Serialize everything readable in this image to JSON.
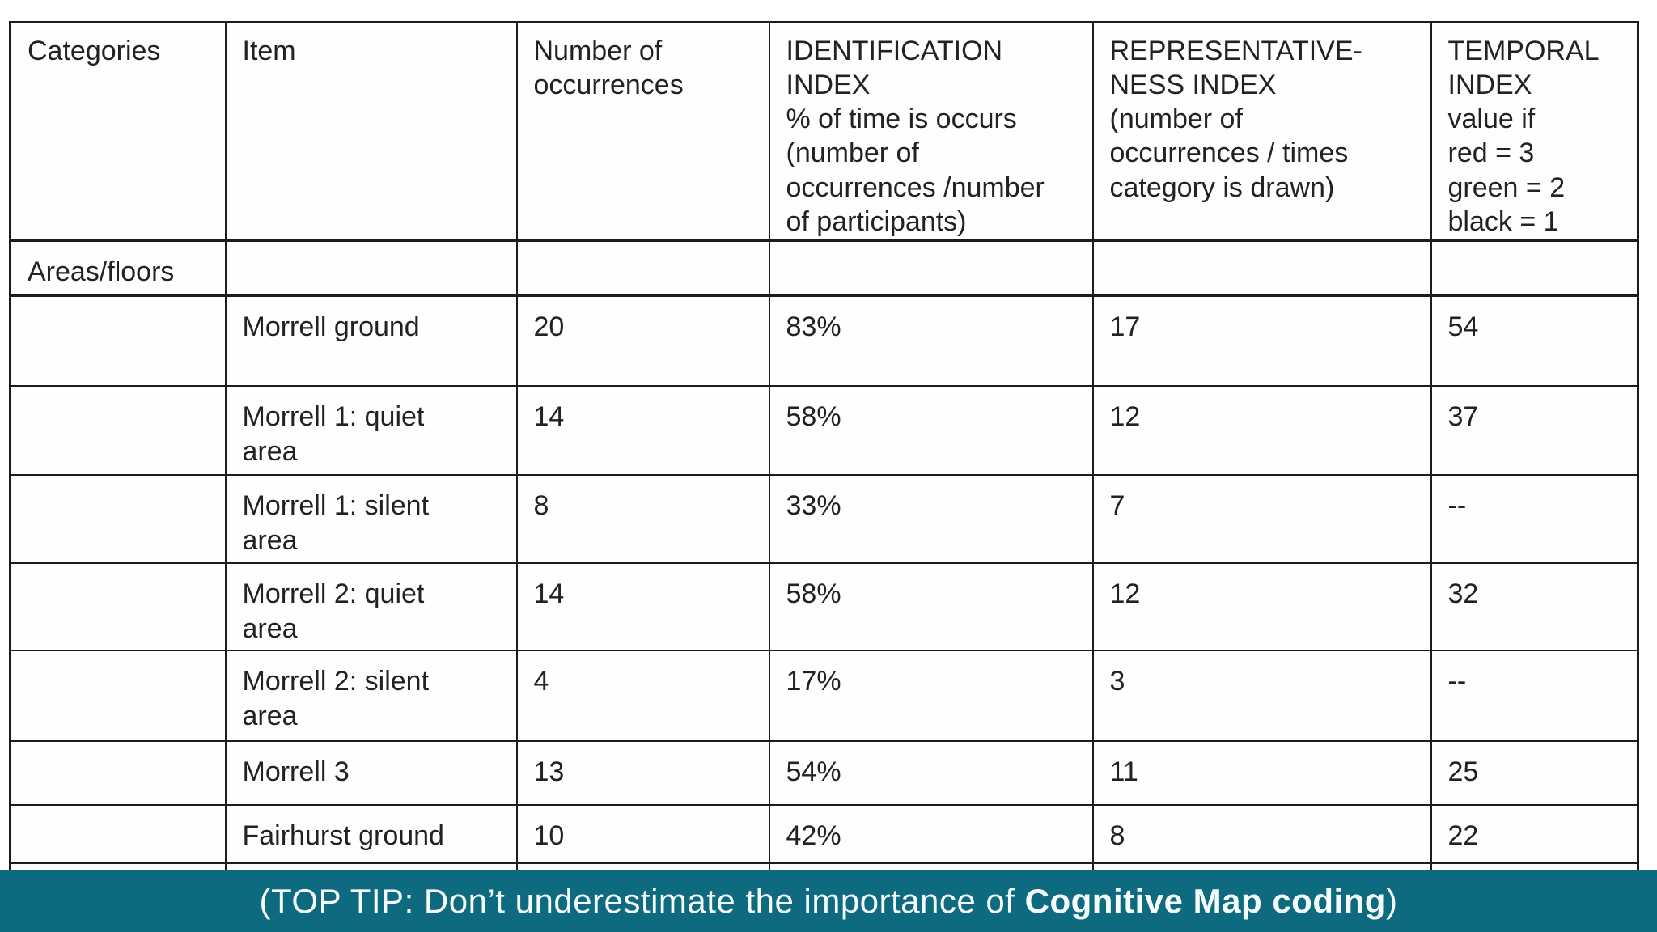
{
  "table": {
    "columns": [
      {
        "label": "Categories"
      },
      {
        "label": "Item"
      },
      {
        "label": "Number of\noccurrences"
      },
      {
        "label": "IDENTIFICATION\nINDEX\n% of time is occurs\n(number of\noccurrences /number\nof participants)"
      },
      {
        "label": "REPRESENTATIVE-\nNESS INDEX\n(number of\noccurrences / times\ncategory is drawn)"
      },
      {
        "label": "TEMPORAL\nINDEX\nvalue if\nred = 3\ngreen = 2\nblack = 1"
      }
    ],
    "rows": [
      {
        "type": "category",
        "category": "Areas/floors",
        "item": "",
        "occurrences": "",
        "identification": "",
        "representativeness": "",
        "temporal": ""
      },
      {
        "type": "data",
        "category": "",
        "item": "Morrell ground",
        "occurrences": "20",
        "identification": "83%",
        "representativeness": "17",
        "temporal": "54"
      },
      {
        "type": "data",
        "category": "",
        "item": "Morrell 1: quiet\narea",
        "occurrences": "14",
        "identification": "58%",
        "representativeness": "12",
        "temporal": "37"
      },
      {
        "type": "data",
        "category": "",
        "item": "Morrell 1: silent\narea",
        "occurrences": "8",
        "identification": "33%",
        "representativeness": "7",
        "temporal": "--"
      },
      {
        "type": "data",
        "category": "",
        "item": "Morrell 2: quiet\narea",
        "occurrences": "14",
        "identification": "58%",
        "representativeness": "12",
        "temporal": "32"
      },
      {
        "type": "data",
        "category": "",
        "item": "Morrell 2: silent\narea",
        "occurrences": "4",
        "identification": "17%",
        "representativeness": "3",
        "temporal": "--"
      },
      {
        "type": "data",
        "category": "",
        "item": "Morrell 3",
        "occurrences": "13",
        "identification": "54%",
        "representativeness": "11",
        "temporal": "25"
      },
      {
        "type": "data",
        "category": "",
        "item": "Fairhurst ground",
        "occurrences": "10",
        "identification": "42%",
        "representativeness": "8",
        "temporal": "22"
      },
      {
        "type": "partial",
        "category": "",
        "item": "",
        "occurrences": "",
        "identification": "",
        "representativeness": "",
        "temporal": ""
      }
    ]
  },
  "banner": {
    "text_prefix": "(TOP TIP: Don’t underestimate the importance of ",
    "text_bold": "Cognitive Map coding",
    "text_suffix": ")",
    "background": "#0e6a7f",
    "text_color": "#f6fcfd"
  }
}
